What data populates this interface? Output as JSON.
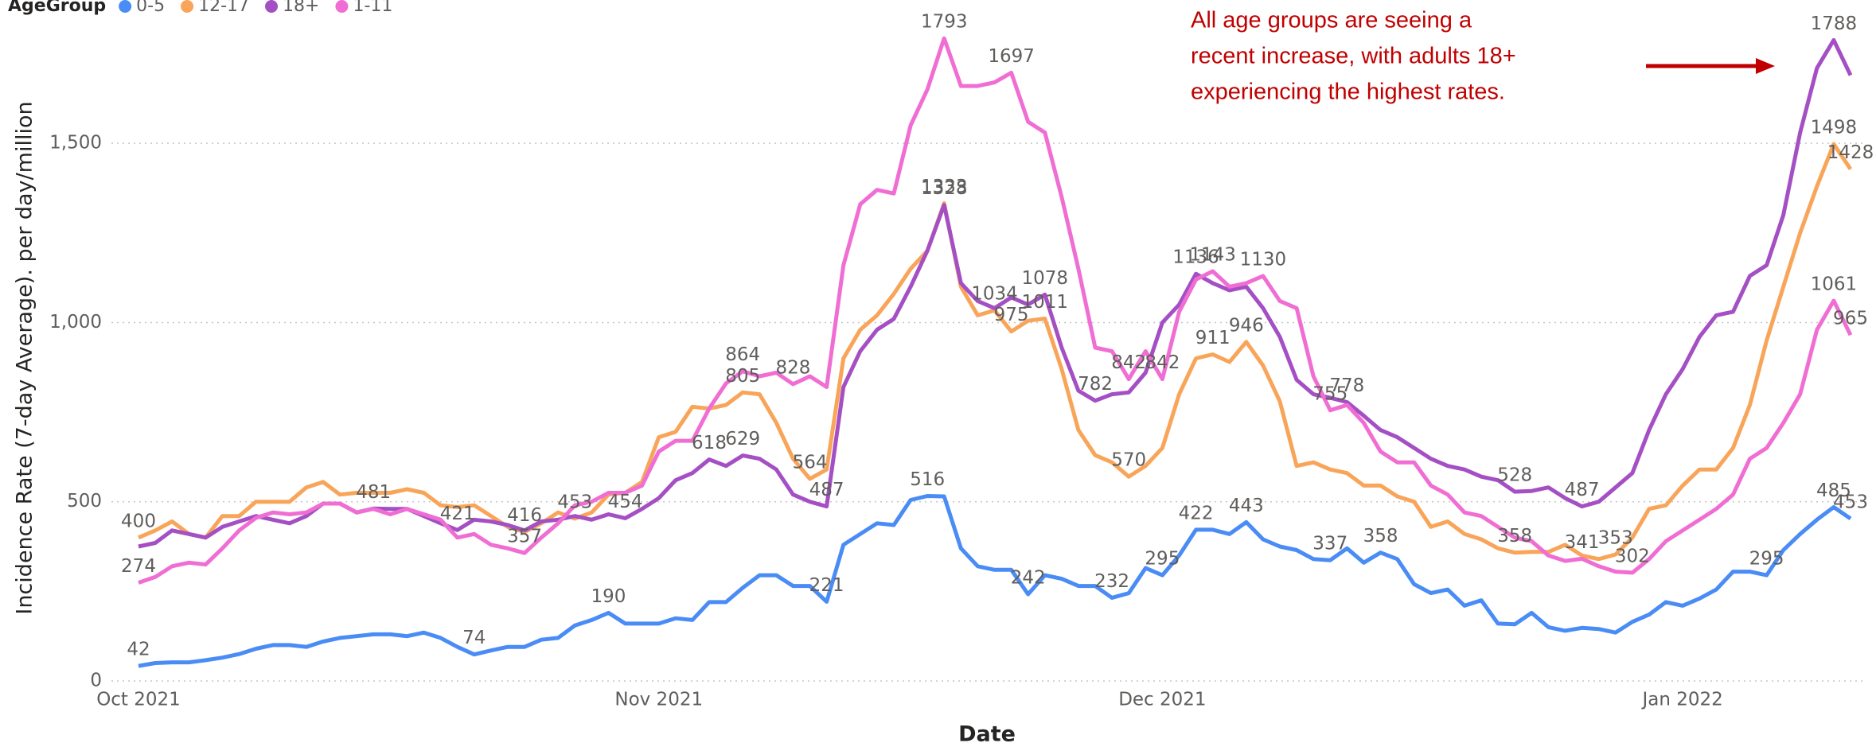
{
  "chart_data": {
    "type": "line",
    "legend_title": "AgeGroup",
    "x_label": "Date",
    "y_label": "Incidence Rate (7-day Average). per day/million",
    "annotation": [
      "All age groups are seeing a",
      "recent increase, with adults 18+",
      "experiencing the highest rates."
    ],
    "categories": [
      "Oct 2021",
      null,
      null,
      null,
      null,
      null,
      null,
      null,
      null,
      null,
      null,
      null,
      null,
      null,
      null,
      null,
      null,
      null,
      null,
      null,
      null,
      null,
      null,
      null,
      null,
      null,
      null,
      null,
      null,
      null,
      null,
      "Nov 2021",
      null,
      null,
      null,
      null,
      null,
      null,
      null,
      null,
      null,
      null,
      null,
      null,
      null,
      null,
      null,
      null,
      null,
      null,
      null,
      null,
      null,
      null,
      null,
      null,
      null,
      null,
      null,
      null,
      null,
      "Dec 2021",
      null,
      null,
      null,
      null,
      null,
      null,
      null,
      null,
      null,
      null,
      null,
      null,
      null,
      null,
      null,
      null,
      null,
      null,
      null,
      null,
      null,
      null,
      null,
      null,
      null,
      null,
      null,
      null,
      null,
      null,
      "Jan 2022",
      null,
      null,
      null,
      null,
      null,
      null,
      null,
      null,
      null,
      null
    ],
    "ylim": [
      0,
      1800
    ],
    "yticks": [
      0,
      500,
      {
        "value": 1000,
        "label": "1,000"
      },
      {
        "value": 1500,
        "label": "1,500"
      }
    ],
    "grid": true,
    "series": [
      {
        "name": "0-5",
        "color": "#4a8cf5",
        "values": [
          42,
          50,
          52,
          52,
          58,
          65,
          75,
          90,
          100,
          100,
          95,
          110,
          120,
          125,
          130,
          130,
          125,
          135,
          120,
          95,
          74,
          85,
          95,
          95,
          115,
          120,
          155,
          170,
          190,
          160,
          160,
          160,
          175,
          170,
          220,
          220,
          260,
          295,
          295,
          265,
          265,
          221,
          380,
          410,
          440,
          435,
          505,
          516,
          515,
          370,
          320,
          310,
          310,
          242,
          295,
          285,
          265,
          265,
          232,
          245,
          315,
          295,
          350,
          422,
          422,
          410,
          443,
          395,
          375,
          365,
          340,
          337,
          370,
          330,
          358,
          340,
          270,
          245,
          255,
          210,
          225,
          160,
          158,
          190,
          150,
          140,
          148,
          145,
          135,
          165,
          185,
          220,
          210,
          230,
          255,
          305,
          305,
          295,
          365,
          410,
          450,
          485,
          453
        ],
        "value_labels": [
          "42",
          null,
          null,
          null,
          null,
          null,
          null,
          null,
          null,
          null,
          null,
          null,
          null,
          null,
          null,
          null,
          null,
          null,
          null,
          null,
          "74",
          null,
          null,
          null,
          null,
          null,
          null,
          null,
          "190",
          null,
          null,
          null,
          null,
          null,
          null,
          null,
          null,
          null,
          null,
          null,
          null,
          "221",
          null,
          null,
          null,
          null,
          null,
          "516",
          null,
          null,
          null,
          null,
          null,
          "242",
          null,
          null,
          null,
          null,
          "232",
          null,
          null,
          "295",
          null,
          "422",
          null,
          null,
          "443",
          null,
          null,
          null,
          null,
          "337",
          null,
          null,
          "358",
          null,
          null,
          null,
          null,
          null,
          null,
          null,
          null,
          null,
          null,
          null,
          null,
          null,
          null,
          null,
          null,
          null,
          null,
          null,
          null,
          null,
          null,
          "295",
          null,
          null,
          null,
          "485",
          "453"
        ]
      },
      {
        "name": "12-17",
        "color": "#f8a55a",
        "values": [
          400,
          420,
          445,
          410,
          400,
          460,
          460,
          500,
          500,
          500,
          540,
          555,
          520,
          525,
          525,
          525,
          535,
          525,
          490,
          485,
          490,
          460,
          430,
          416,
          440,
          470,
          453,
          470,
          520,
          525,
          555,
          680,
          695,
          765,
          760,
          770,
          805,
          800,
          720,
          620,
          564,
          590,
          900,
          980,
          1020,
          1080,
          1150,
          1200,
          1333,
          1100,
          1020,
          1034,
          975,
          1005,
          1011,
          870,
          700,
          630,
          610,
          570,
          600,
          650,
          800,
          900,
          911,
          890,
          946,
          880,
          780,
          600,
          610,
          590,
          580,
          545,
          545,
          515,
          500,
          430,
          445,
          410,
          395,
          370,
          358,
          360,
          360,
          380,
          350,
          340,
          353,
          400,
          480,
          490,
          545,
          590,
          590,
          650,
          770,
          950,
          1100,
          1250,
          1380,
          1498,
          1428
        ],
        "value_labels": [
          "400",
          null,
          null,
          null,
          null,
          null,
          null,
          null,
          null,
          null,
          null,
          null,
          null,
          null,
          null,
          null,
          null,
          null,
          null,
          null,
          null,
          null,
          null,
          "416",
          null,
          null,
          "453",
          null,
          null,
          null,
          null,
          null,
          null,
          null,
          null,
          null,
          "805",
          null,
          null,
          null,
          "564",
          null,
          null,
          null,
          null,
          null,
          null,
          null,
          "1333",
          null,
          null,
          "1034",
          "975",
          null,
          "1011",
          null,
          null,
          null,
          null,
          "570",
          null,
          null,
          null,
          null,
          "911",
          null,
          "946",
          null,
          null,
          null,
          null,
          null,
          null,
          null,
          null,
          null,
          null,
          null,
          null,
          null,
          null,
          null,
          "358",
          null,
          null,
          null,
          null,
          null,
          "353",
          null,
          null,
          null,
          null,
          null,
          null,
          null,
          null,
          null,
          null,
          null,
          null,
          "1498",
          "1428"
        ]
      },
      {
        "name": "18+",
        "color": "#a44fc4",
        "values": [
          375,
          385,
          420,
          410,
          400,
          430,
          445,
          460,
          450,
          440,
          460,
          495,
          495,
          470,
          481,
          480,
          480,
          460,
          440,
          421,
          450,
          445,
          435,
          420,
          445,
          450,
          460,
          450,
          465,
          454,
          480,
          510,
          560,
          580,
          618,
          600,
          629,
          620,
          590,
          520,
          500,
          487,
          820,
          920,
          980,
          1010,
          1100,
          1200,
          1328,
          1110,
          1060,
          1040,
          1070,
          1050,
          1078,
          930,
          810,
          782,
          800,
          805,
          860,
          1000,
          1050,
          1136,
          1110,
          1090,
          1100,
          1040,
          960,
          840,
          800,
          790,
          778,
          740,
          700,
          680,
          650,
          620,
          600,
          590,
          570,
          560,
          528,
          530,
          540,
          510,
          487,
          500,
          540,
          580,
          700,
          800,
          870,
          960,
          1020,
          1030,
          1130,
          1160,
          1300,
          1530,
          1710,
          1788,
          1690
        ],
        "value_labels": [
          null,
          null,
          null,
          null,
          null,
          null,
          null,
          null,
          null,
          null,
          null,
          null,
          null,
          null,
          "481",
          null,
          null,
          null,
          null,
          "421",
          null,
          null,
          null,
          null,
          null,
          null,
          null,
          null,
          null,
          "454",
          null,
          null,
          null,
          null,
          "618",
          null,
          "629",
          null,
          null,
          null,
          null,
          "487",
          null,
          null,
          null,
          null,
          null,
          null,
          "1328",
          null,
          null,
          null,
          null,
          null,
          "1078",
          null,
          null,
          "782",
          null,
          null,
          null,
          null,
          null,
          "1136",
          null,
          null,
          null,
          null,
          null,
          null,
          null,
          null,
          "778",
          null,
          null,
          null,
          null,
          null,
          null,
          null,
          null,
          null,
          "528",
          null,
          null,
          null,
          "487",
          null,
          null,
          null,
          null,
          null,
          null,
          null,
          null,
          null,
          null,
          null,
          null,
          null,
          null,
          "1788",
          null
        ]
      },
      {
        "name": "1-11",
        "color": "#f06ed3",
        "values": [
          274,
          290,
          320,
          330,
          325,
          370,
          420,
          455,
          470,
          465,
          470,
          495,
          495,
          470,
          480,
          465,
          480,
          465,
          450,
          400,
          410,
          380,
          370,
          357,
          400,
          440,
          490,
          500,
          525,
          525,
          545,
          640,
          670,
          670,
          760,
          830,
          864,
          850,
          860,
          828,
          850,
          820,
          1160,
          1330,
          1370,
          1360,
          1550,
          1650,
          1793,
          1660,
          1660,
          1670,
          1697,
          1560,
          1530,
          1350,
          1150,
          930,
          920,
          842,
          920,
          842,
          1030,
          1120,
          1143,
          1100,
          1110,
          1130,
          1060,
          1040,
          850,
          755,
          770,
          720,
          640,
          610,
          610,
          545,
          520,
          470,
          460,
          430,
          400,
          390,
          350,
          335,
          341,
          320,
          305,
          302,
          340,
          390,
          420,
          450,
          480,
          520,
          620,
          650,
          720,
          800,
          980,
          1061,
          965
        ],
        "value_labels": [
          "274",
          null,
          null,
          null,
          null,
          null,
          null,
          null,
          null,
          null,
          null,
          null,
          null,
          null,
          null,
          null,
          null,
          null,
          null,
          null,
          null,
          null,
          null,
          "357",
          null,
          null,
          null,
          null,
          null,
          null,
          null,
          null,
          null,
          null,
          null,
          null,
          "864",
          null,
          null,
          "828",
          null,
          null,
          null,
          null,
          null,
          null,
          null,
          null,
          "1793",
          null,
          null,
          null,
          "1697",
          null,
          null,
          null,
          null,
          null,
          null,
          "842",
          null,
          "842",
          null,
          null,
          "1143",
          null,
          null,
          "1130",
          null,
          null,
          null,
          "755",
          null,
          null,
          null,
          null,
          null,
          null,
          null,
          null,
          null,
          null,
          null,
          null,
          null,
          null,
          "341",
          null,
          null,
          "302",
          null,
          null,
          null,
          null,
          null,
          null,
          null,
          null,
          null,
          null,
          null,
          "1061",
          "965"
        ]
      }
    ]
  }
}
